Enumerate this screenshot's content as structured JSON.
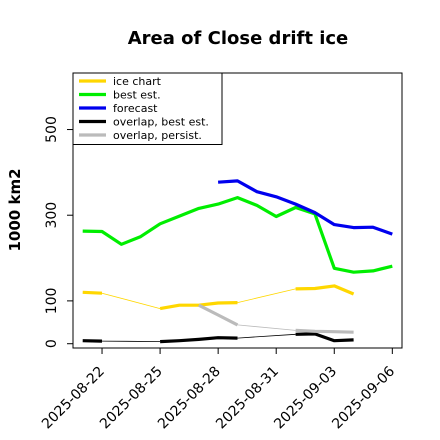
{
  "chart_data": {
    "type": "line",
    "title": "Area of Close drift ice",
    "xlabel": "",
    "ylabel": "1000 km2",
    "ylim": [
      -10,
      632
    ],
    "xlim": [
      "2025-08-20T12",
      "2025-09-06T12"
    ],
    "yticks": [
      0,
      100,
      300,
      500
    ],
    "xticks": [
      {
        "label": "2025-08-22",
        "x": "2025-08-22",
        "color": "#000000"
      },
      {
        "label": "2025-08-25",
        "x": "2025-08-25",
        "color": "#000000"
      },
      {
        "label": "2025-08-28",
        "x": "2025-08-28",
        "color": "#2e8b2e"
      },
      {
        "label": "2025-08-31",
        "x": "2025-08-31",
        "color": "#000000"
      },
      {
        "label": "2025-09-03",
        "x": "2025-09-03",
        "color": "#000000"
      },
      {
        "label": "2025-09-06",
        "x": "2025-09-06",
        "color": "#000000"
      }
    ],
    "grid": false,
    "legend_position": "top-left",
    "series": [
      {
        "name": "ice chart",
        "color": "#ffd700",
        "segments": [
          [
            [
              "2025-08-21",
              120
            ],
            [
              "2025-08-22",
              118
            ]
          ],
          [
            [
              "2025-08-25",
              82
            ],
            [
              "2025-08-26",
              90
            ],
            [
              "2025-08-27",
              90
            ],
            [
              "2025-08-28",
              95
            ],
            [
              "2025-08-29",
              96
            ]
          ],
          [
            [
              "2025-09-01",
              128
            ],
            [
              "2025-09-02",
              129
            ],
            [
              "2025-09-03",
              135
            ],
            [
              "2025-09-04",
              116
            ]
          ]
        ],
        "thin_connectors": [
          [
            [
              "2025-08-22",
              118
            ],
            [
              "2025-08-25",
              82
            ]
          ],
          [
            [
              "2025-08-29",
              96
            ],
            [
              "2025-09-01",
              128
            ]
          ]
        ]
      },
      {
        "name": "best est.",
        "color": "#00ee00",
        "points": [
          [
            "2025-08-21",
            263
          ],
          [
            "2025-08-22",
            262
          ],
          [
            "2025-08-23",
            232
          ],
          [
            "2025-08-24",
            250
          ],
          [
            "2025-08-25",
            280
          ],
          [
            "2025-08-26",
            298
          ],
          [
            "2025-08-27",
            316
          ],
          [
            "2025-08-28",
            326
          ],
          [
            "2025-08-29",
            341
          ],
          [
            "2025-08-30",
            323
          ],
          [
            "2025-08-31",
            297
          ],
          [
            "2025-09-01",
            318
          ],
          [
            "2025-09-02",
            303
          ],
          [
            "2025-09-03",
            176
          ],
          [
            "2025-09-04",
            167
          ],
          [
            "2025-09-05",
            170
          ],
          [
            "2025-09-06",
            181
          ]
        ]
      },
      {
        "name": "forecast",
        "color": "#0000ee",
        "points": [
          [
            "2025-08-28",
            377
          ],
          [
            "2025-08-29",
            380
          ],
          [
            "2025-08-30",
            355
          ],
          [
            "2025-08-31",
            343
          ],
          [
            "2025-09-01",
            326
          ],
          [
            "2025-09-02",
            306
          ],
          [
            "2025-09-03",
            278
          ],
          [
            "2025-09-04",
            271
          ],
          [
            "2025-09-05",
            272
          ],
          [
            "2025-09-06",
            256
          ]
        ]
      },
      {
        "name": "overlap, best est.",
        "color": "#000000",
        "segments": [
          [
            [
              "2025-08-21",
              7
            ],
            [
              "2025-08-22",
              6
            ]
          ],
          [
            [
              "2025-08-25",
              5
            ],
            [
              "2025-08-26",
              7
            ],
            [
              "2025-08-27",
              10
            ],
            [
              "2025-08-28",
              14
            ],
            [
              "2025-08-29",
              13
            ]
          ],
          [
            [
              "2025-09-01",
              22
            ],
            [
              "2025-09-02",
              23
            ],
            [
              "2025-09-03",
              7
            ],
            [
              "2025-09-04",
              9
            ]
          ]
        ],
        "thin_connectors": [
          [
            [
              "2025-08-22",
              6
            ],
            [
              "2025-08-25",
              5
            ]
          ],
          [
            [
              "2025-08-29",
              13
            ],
            [
              "2025-09-01",
              22
            ]
          ]
        ]
      },
      {
        "name": "overlap, persist.",
        "color": "#bbbbbb",
        "segments": [
          [
            [
              "2025-08-27",
              90
            ],
            [
              "2025-08-28",
              67
            ],
            [
              "2025-08-29",
              44
            ]
          ],
          [
            [
              "2025-09-01",
              31
            ],
            [
              "2025-09-02",
              29
            ],
            [
              "2025-09-03",
              28
            ],
            [
              "2025-09-04",
              27
            ]
          ]
        ],
        "thin_connectors": [
          [
            [
              "2025-08-29",
              44
            ],
            [
              "2025-09-01",
              31
            ]
          ]
        ]
      }
    ]
  }
}
